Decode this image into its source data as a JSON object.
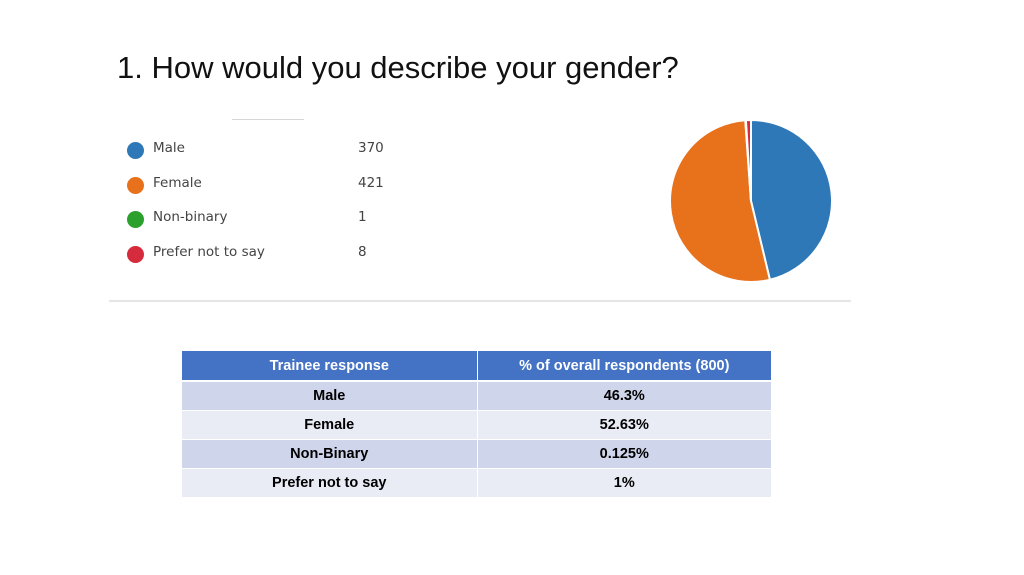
{
  "slide": {
    "title": "1. How would you describe your gender?"
  },
  "chart_data": {
    "type": "pie",
    "categories": [
      "Male",
      "Female",
      "Non-binary",
      "Prefer not to say"
    ],
    "values": [
      370,
      421,
      1,
      8
    ],
    "colors": [
      "#2e78b7",
      "#e8711c",
      "#2ca02c",
      "#d62b3c"
    ],
    "legend_position": "left"
  },
  "table": {
    "headers": [
      "Trainee response",
      "% of overall respondents (800)"
    ],
    "rows": [
      [
        "Male",
        "46.3%"
      ],
      [
        "Female",
        "52.63%"
      ],
      [
        "Non-Binary",
        "0.125%"
      ],
      [
        "Prefer not to say",
        "1%"
      ]
    ]
  }
}
